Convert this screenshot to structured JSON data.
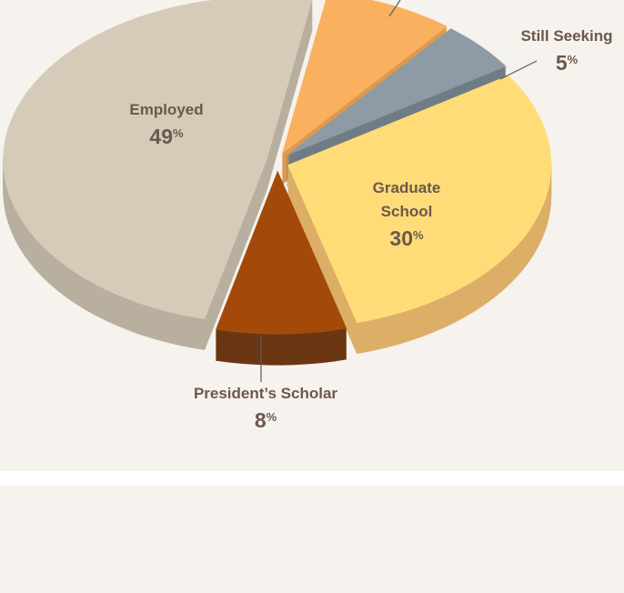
{
  "chart_data": {
    "type": "pie",
    "categories": [
      null,
      "Still Seeking",
      "Graduate School",
      "President’s Scholar",
      "Employed"
    ],
    "values": [
      8,
      5,
      30,
      8,
      49
    ],
    "value_labels": [
      null,
      "5%",
      "30%",
      "8%",
      "49%"
    ],
    "colors": [
      "#f9b15f",
      "#8e9ba4",
      "#ffdc78",
      "#a34a0b",
      "#d5cbb8"
    ],
    "side_colors": [
      "#e0994c",
      "#6f7c86",
      "#dcae67",
      "#6a3613",
      "#b8af9f"
    ]
  }
}
